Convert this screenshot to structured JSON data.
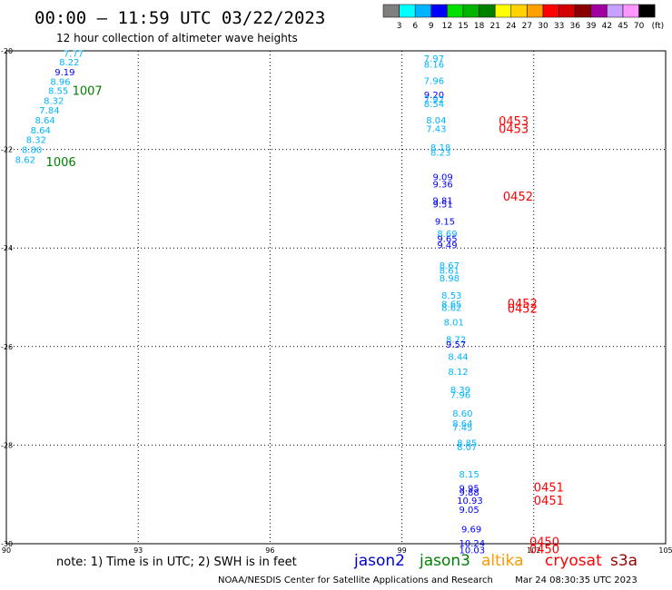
{
  "title": "00:00 – 11:59 UTC 03/22/2023",
  "subtitle": "12 hour collection of altimeter wave heights",
  "colorbar": {
    "unit_label": "(ft)",
    "ticks": [
      "3",
      "6",
      "9",
      "12",
      "15",
      "18",
      "21",
      "24",
      "27",
      "30",
      "33",
      "36",
      "39",
      "42",
      "45",
      "70"
    ],
    "colors": [
      "#7f7f7f",
      "#00ffff",
      "#00b4ff",
      "#0000ff",
      "#00e000",
      "#00b400",
      "#008000",
      "#ffff00",
      "#ffd200",
      "#ffa000",
      "#ff0000",
      "#d20000",
      "#8b0000",
      "#a000a0",
      "#c8a0ff",
      "#ff96ff",
      "#000000"
    ]
  },
  "note": "note: 1) Time is in UTC; 2) SWH is in feet",
  "satellites": [
    {
      "name": "jason2",
      "color": "#0000cc"
    },
    {
      "name": "jason3",
      "color": "#008000"
    },
    {
      "name": "altika",
      "color": "#ff9900"
    },
    {
      "name": "cryosat",
      "color": "#ff0000"
    },
    {
      "name": "s3a",
      "color": "#990000"
    }
  ],
  "credit": "NOAA/NESDIS Center for Satellite Applications and Research",
  "timestamp": "Mar 24 08:30:35 UTC 2023",
  "chart_data": {
    "type": "scatter",
    "xlim": [
      90,
      105
    ],
    "ylim": [
      -30,
      -20
    ],
    "x_ticks": [
      "90",
      "93",
      "96",
      "99",
      "102",
      "105"
    ],
    "y_ticks": [
      "-20",
      "-22",
      "-24",
      "-26",
      "-28",
      "-30"
    ],
    "grid": true,
    "wave_heights": [
      {
        "x": 91.3,
        "y": -20.05,
        "text": "7.77",
        "color": "#00b4ff"
      },
      {
        "x": 91.2,
        "y": -20.22,
        "text": "8.22",
        "color": "#00b4ff"
      },
      {
        "x": 91.1,
        "y": -20.42,
        "text": "9.19",
        "color": "#0000ff"
      },
      {
        "x": 91.0,
        "y": -20.62,
        "text": "8.96",
        "color": "#00b4ff"
      },
      {
        "x": 90.95,
        "y": -20.8,
        "text": "8.55",
        "color": "#00b4ff"
      },
      {
        "x": 90.85,
        "y": -21.0,
        "text": "8.32",
        "color": "#00b4ff"
      },
      {
        "x": 90.75,
        "y": -21.2,
        "text": "7.84",
        "color": "#00b4ff"
      },
      {
        "x": 90.65,
        "y": -21.4,
        "text": "8.64",
        "color": "#00b4ff"
      },
      {
        "x": 90.55,
        "y": -21.6,
        "text": "8.64",
        "color": "#00b4ff"
      },
      {
        "x": 90.45,
        "y": -21.8,
        "text": "8.32",
        "color": "#00b4ff"
      },
      {
        "x": 90.35,
        "y": -22.0,
        "text": "8.80",
        "color": "#00b4ff"
      },
      {
        "x": 90.2,
        "y": -22.2,
        "text": "8.62",
        "color": "#00b4ff"
      },
      {
        "x": 99.5,
        "y": -20.15,
        "text": "7.97",
        "color": "#00b4ff"
      },
      {
        "x": 99.5,
        "y": -20.27,
        "text": "8.16",
        "color": "#00b4ff"
      },
      {
        "x": 99.5,
        "y": -20.6,
        "text": "7.96",
        "color": "#00b4ff"
      },
      {
        "x": 99.5,
        "y": -20.88,
        "text": "9.20",
        "color": "#0000ff"
      },
      {
        "x": 99.5,
        "y": -20.98,
        "text": "7.92",
        "color": "#00b4ff"
      },
      {
        "x": 99.5,
        "y": -21.07,
        "text": "8.54",
        "color": "#00b4ff"
      },
      {
        "x": 99.55,
        "y": -21.4,
        "text": "8.04",
        "color": "#00b4ff"
      },
      {
        "x": 99.55,
        "y": -21.57,
        "text": "7.43",
        "color": "#00b4ff"
      },
      {
        "x": 99.65,
        "y": -21.95,
        "text": "8.18",
        "color": "#00b4ff"
      },
      {
        "x": 99.65,
        "y": -22.05,
        "text": "8.23",
        "color": "#00b4ff"
      },
      {
        "x": 99.7,
        "y": -22.55,
        "text": "9.09",
        "color": "#0000ff"
      },
      {
        "x": 99.7,
        "y": -22.7,
        "text": "9.36",
        "color": "#0000ff"
      },
      {
        "x": 99.7,
        "y": -23.03,
        "text": "9.81",
        "color": "#0000ff"
      },
      {
        "x": 99.7,
        "y": -23.1,
        "text": "9.51",
        "color": "#0000ff"
      },
      {
        "x": 99.75,
        "y": -23.45,
        "text": "9.15",
        "color": "#0000ff"
      },
      {
        "x": 99.8,
        "y": -23.7,
        "text": "8.69",
        "color": "#00b4ff"
      },
      {
        "x": 99.8,
        "y": -23.8,
        "text": "9.65",
        "color": "#0000ff"
      },
      {
        "x": 99.8,
        "y": -23.93,
        "text": "9.49",
        "color": "#0000ff"
      },
      {
        "x": 99.85,
        "y": -24.35,
        "text": "8.67",
        "color": "#00b4ff"
      },
      {
        "x": 99.85,
        "y": -24.45,
        "text": "8.61",
        "color": "#00b4ff"
      },
      {
        "x": 99.85,
        "y": -24.6,
        "text": "8.98",
        "color": "#00b4ff"
      },
      {
        "x": 99.9,
        "y": -24.95,
        "text": "8.53",
        "color": "#00b4ff"
      },
      {
        "x": 99.9,
        "y": -25.13,
        "text": "8.65",
        "color": "#00b4ff"
      },
      {
        "x": 99.9,
        "y": -25.2,
        "text": "8.62",
        "color": "#00b4ff"
      },
      {
        "x": 99.95,
        "y": -25.5,
        "text": "8.01",
        "color": "#00b4ff"
      },
      {
        "x": 100.0,
        "y": -25.85,
        "text": "8.72",
        "color": "#00b4ff"
      },
      {
        "x": 100.0,
        "y": -25.95,
        "text": "9.57",
        "color": "#0000ff"
      },
      {
        "x": 100.05,
        "y": -26.2,
        "text": "8.44",
        "color": "#00b4ff"
      },
      {
        "x": 100.05,
        "y": -26.5,
        "text": "8.12",
        "color": "#00b4ff"
      },
      {
        "x": 100.1,
        "y": -26.87,
        "text": "8.39",
        "color": "#00b4ff"
      },
      {
        "x": 100.1,
        "y": -26.97,
        "text": "7.96",
        "color": "#00b4ff"
      },
      {
        "x": 100.15,
        "y": -27.35,
        "text": "8.60",
        "color": "#00b4ff"
      },
      {
        "x": 100.15,
        "y": -27.55,
        "text": "8.64",
        "color": "#00b4ff"
      },
      {
        "x": 100.15,
        "y": -27.63,
        "text": "7.45",
        "color": "#00b4ff"
      },
      {
        "x": 100.25,
        "y": -27.95,
        "text": "8.85",
        "color": "#00b4ff"
      },
      {
        "x": 100.25,
        "y": -28.03,
        "text": "8.07",
        "color": "#00b4ff"
      },
      {
        "x": 100.3,
        "y": -28.58,
        "text": "8.15",
        "color": "#00b4ff"
      },
      {
        "x": 100.3,
        "y": -28.87,
        "text": "9.95",
        "color": "#0000ff"
      },
      {
        "x": 100.3,
        "y": -28.95,
        "text": "9.88",
        "color": "#0000ff"
      },
      {
        "x": 100.25,
        "y": -29.12,
        "text": "10.93",
        "color": "#0000ff"
      },
      {
        "x": 100.3,
        "y": -29.3,
        "text": "9.05",
        "color": "#0000ff"
      },
      {
        "x": 100.35,
        "y": -29.7,
        "text": "9.69",
        "color": "#0000ff"
      },
      {
        "x": 100.3,
        "y": -29.98,
        "text": "10.24",
        "color": "#0000ff"
      },
      {
        "x": 100.3,
        "y": -30.12,
        "text": "10.03",
        "color": "#0000ff"
      }
    ],
    "time_labels": [
      {
        "x": 91.5,
        "y": -20.8,
        "text": "1007",
        "color": "#008000"
      },
      {
        "x": 90.9,
        "y": -22.25,
        "text": "1006",
        "color": "#008000"
      },
      {
        "x": 101.2,
        "y": -21.42,
        "text": "0453",
        "color": "#ff0000"
      },
      {
        "x": 101.2,
        "y": -21.57,
        "text": "0453",
        "color": "#ff0000"
      },
      {
        "x": 101.3,
        "y": -22.95,
        "text": "0452",
        "color": "#ff0000"
      },
      {
        "x": 101.4,
        "y": -25.12,
        "text": "0452",
        "color": "#ff0000"
      },
      {
        "x": 101.4,
        "y": -25.22,
        "text": "0452",
        "color": "#ff0000"
      },
      {
        "x": 102.0,
        "y": -28.85,
        "text": "0451",
        "color": "#ff0000"
      },
      {
        "x": 102.0,
        "y": -29.12,
        "text": "0451",
        "color": "#ff0000"
      },
      {
        "x": 101.9,
        "y": -29.95,
        "text": "0450",
        "color": "#ff0000"
      },
      {
        "x": 101.9,
        "y": -30.1,
        "text": "0450",
        "color": "#ff0000"
      }
    ]
  }
}
